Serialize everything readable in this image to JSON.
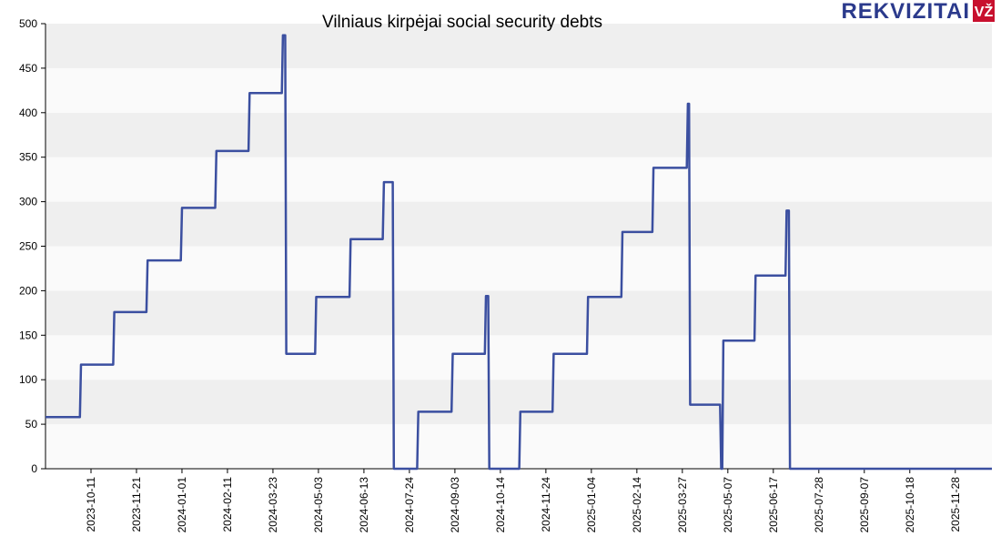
{
  "logo": {
    "brand": "REKVIZITAI",
    "badge": "VŽ",
    "brand_color": "#2b3a8c",
    "badge_color": "#c8102e"
  },
  "colors": {
    "line": "#3b4fa0",
    "band_dark": "#efefef",
    "band_light": "#fafafa",
    "axis": "#000000"
  },
  "chart_data": {
    "type": "line",
    "title": "Vilniaus kirpėjai social security debts",
    "xlabel": "",
    "ylabel": "",
    "ylim": [
      0,
      500
    ],
    "yticks": [
      0,
      50,
      100,
      150,
      200,
      250,
      300,
      350,
      400,
      450,
      500
    ],
    "grid": "horizontal bands",
    "xlim": [
      "2023-08-31",
      "2025-12-31"
    ],
    "xticks": [
      "2023-10-11",
      "2023-11-21",
      "2024-01-01",
      "2024-02-11",
      "2024-03-23",
      "2024-05-03",
      "2024-06-13",
      "2024-07-24",
      "2024-09-03",
      "2024-10-14",
      "2024-11-24",
      "2025-01-04",
      "2025-02-14",
      "2025-03-27",
      "2025-05-07",
      "2025-06-17",
      "2025-07-28",
      "2025-09-07",
      "2025-10-18",
      "2025-11-28"
    ],
    "series": [
      {
        "color": "#3b4fa0",
        "x": [
          "2023-08-31",
          "2023-10-01",
          "2023-10-02",
          "2023-10-31",
          "2023-11-01",
          "2023-11-30",
          "2023-12-01",
          "2023-12-31",
          "2024-01-01",
          "2024-01-31",
          "2024-02-01",
          "2024-03-01",
          "2024-03-02",
          "2024-03-31",
          "2024-04-01",
          "2024-04-03",
          "2024-04-04",
          "2024-04-30",
          "2024-05-01",
          "2024-05-31",
          "2024-06-01",
          "2024-06-30",
          "2024-07-01",
          "2024-07-09",
          "2024-07-10",
          "2024-07-11",
          "2024-07-12",
          "2024-07-31",
          "2024-08-01",
          "2024-08-31",
          "2024-09-01",
          "2024-09-30",
          "2024-10-01",
          "2024-10-03",
          "2024-10-04",
          "2024-10-31",
          "2024-11-01",
          "2024-11-30",
          "2024-12-01",
          "2024-12-31",
          "2025-01-01",
          "2025-01-31",
          "2025-02-01",
          "2025-02-28",
          "2025-03-01",
          "2025-03-31",
          "2025-04-01",
          "2025-04-02",
          "2025-04-03",
          "2025-04-30",
          "2025-05-01",
          "2025-05-02",
          "2025-05-03",
          "2025-05-31",
          "2025-06-01",
          "2025-06-28",
          "2025-06-29",
          "2025-07-01",
          "2025-07-02",
          "2025-07-05",
          "2025-12-31"
        ],
        "y": [
          58,
          58,
          117,
          117,
          176,
          176,
          234,
          234,
          293,
          293,
          357,
          357,
          422,
          422,
          487,
          487,
          129,
          129,
          193,
          193,
          258,
          258,
          322,
          322,
          0,
          0,
          0,
          0,
          64,
          64,
          129,
          129,
          194,
          194,
          0,
          0,
          64,
          64,
          129,
          129,
          193,
          193,
          266,
          266,
          338,
          338,
          410,
          410,
          72,
          72,
          0,
          0,
          144,
          144,
          217,
          217,
          290,
          290,
          0,
          0,
          0
        ]
      }
    ]
  }
}
